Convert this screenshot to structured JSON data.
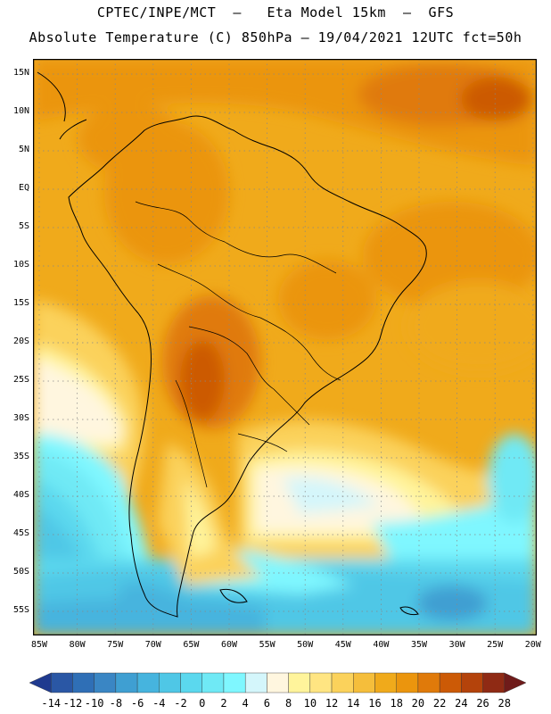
{
  "header": {
    "line1": "CPTEC/INPE/MCT  –   Eta Model 15km  –  GFS",
    "line2": "Absolute Temperature (C) 850hPa – 19/04/2021 12UTC fct=50h"
  },
  "map": {
    "lat_labels": [
      "15N",
      "10N",
      "5N",
      "EQ",
      "5S",
      "10S",
      "15S",
      "20S",
      "25S",
      "30S",
      "35S",
      "40S",
      "45S",
      "50S",
      "55S"
    ],
    "lon_labels": [
      "85W",
      "80W",
      "75W",
      "70W",
      "65W",
      "60W",
      "55W",
      "50W",
      "45W",
      "40W",
      "35W",
      "30W",
      "25W",
      "20W"
    ],
    "grid": "dotted"
  },
  "colorbar": {
    "labels": [
      "-14",
      "-12",
      "-10",
      "-8",
      "-6",
      "-4",
      "-2",
      "0",
      "2",
      "4",
      "6",
      "8",
      "10",
      "12",
      "14",
      "16",
      "18",
      "20",
      "22",
      "24",
      "26",
      "28"
    ],
    "colors": [
      "#1f3a8f",
      "#2a57a5",
      "#2f6fb6",
      "#3a86c4",
      "#3f9fd2",
      "#46b4de",
      "#4fc7e6",
      "#5bd8ee",
      "#6fe9f5",
      "#7ff7ff",
      "#d4f6fb",
      "#fff6df",
      "#fff49b",
      "#ffe582",
      "#fbd25b",
      "#f5be3b",
      "#f0aa1b",
      "#eb950d",
      "#e07a0a",
      "#cc5a06",
      "#b4430b",
      "#8f2a14",
      "#6f1b1a"
    ]
  }
}
